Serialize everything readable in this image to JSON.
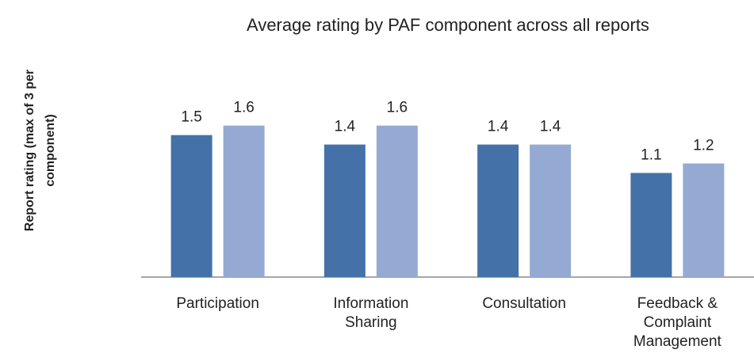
{
  "chart_data": {
    "type": "bar",
    "title": "Average rating by PAF component across all reports",
    "y_label": "Report rating (max of 3 per\ncomponent)",
    "categories": [
      "Participation",
      "Information\nSharing",
      "Consultation",
      "Feedback &\nComplaint\nManagement"
    ],
    "series": [
      {
        "color": "#4472a8",
        "values": [
          1.5,
          1.4,
          1.4,
          1.1
        ]
      },
      {
        "color": "#95aad3",
        "values": [
          1.6,
          1.6,
          1.4,
          1.2
        ]
      }
    ],
    "ylim": [
      0,
      2.4
    ],
    "grid": false
  }
}
